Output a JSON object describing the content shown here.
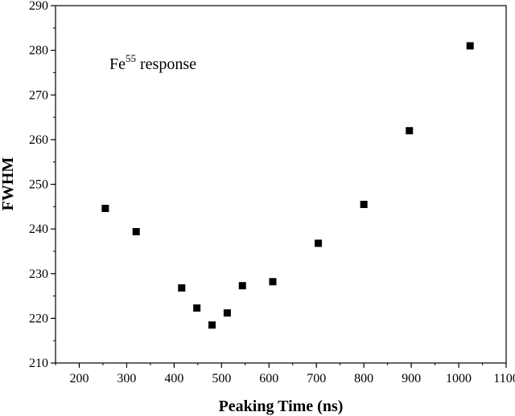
{
  "chart_data": {
    "type": "scatter",
    "xlabel": "Peaking Time (ns)",
    "ylabel": "FWHM",
    "xlim": [
      150,
      1100
    ],
    "ylim": [
      210,
      290
    ],
    "x_ticks": [
      200,
      300,
      400,
      500,
      600,
      700,
      800,
      900,
      1000,
      1100
    ],
    "y_ticks": [
      210,
      220,
      230,
      240,
      250,
      260,
      270,
      280,
      290
    ],
    "grid": false,
    "legend": "none",
    "annotation": {
      "base": "Fe",
      "superscript": "55",
      "rest": " response"
    },
    "marker": "filled-square",
    "marker_color": "#000000",
    "series": [
      {
        "points": [
          {
            "x": 255,
            "y": 244.6
          },
          {
            "x": 320,
            "y": 239.4
          },
          {
            "x": 416,
            "y": 226.8
          },
          {
            "x": 448,
            "y": 222.3
          },
          {
            "x": 480,
            "y": 218.5
          },
          {
            "x": 512,
            "y": 221.2
          },
          {
            "x": 544,
            "y": 227.3
          },
          {
            "x": 608,
            "y": 228.2
          },
          {
            "x": 704,
            "y": 236.8
          },
          {
            "x": 800,
            "y": 245.5
          },
          {
            "x": 896,
            "y": 262.0
          },
          {
            "x": 1024,
            "y": 281.0
          }
        ]
      }
    ]
  }
}
